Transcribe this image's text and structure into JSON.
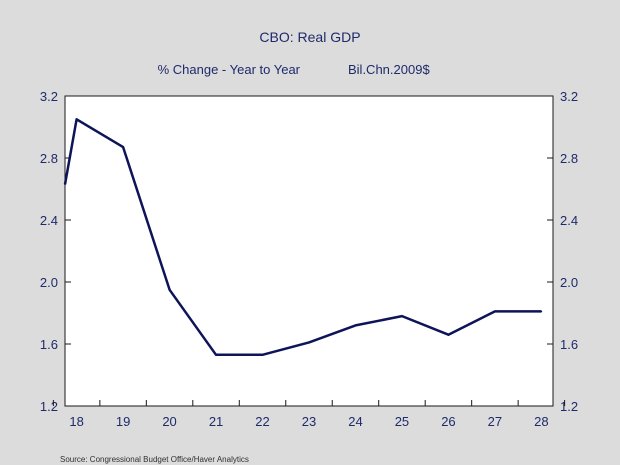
{
  "chart_data": {
    "type": "line",
    "title": "CBO: Real GDP",
    "subtitle_left": "% Change - Year to Year",
    "subtitle_right": "Bil.Chn.2009$",
    "source": "Source:  Congressional Budget Office/Haver Analytics",
    "x_tick_labels": [
      "18",
      "19",
      "20",
      "21",
      "22",
      "23",
      "24",
      "25",
      "26",
      "27",
      "28"
    ],
    "y_ticks": [
      1.2,
      1.6,
      2.0,
      2.4,
      2.8,
      3.2
    ],
    "y_tick_labels": [
      "1.2",
      "1.6",
      "2.0",
      "2.4",
      "2.8",
      "3.2"
    ],
    "ylim": [
      1.2,
      3.2
    ],
    "xlim": [
      2017.75,
      2028.25
    ],
    "grid": false,
    "series": [
      {
        "x": [
          2017.75,
          2018.0,
          2019.0,
          2020.0,
          2021.0,
          2022.0,
          2023.0,
          2024.0,
          2025.0,
          2026.0,
          2027.0,
          2028.0
        ],
        "values": [
          2.63,
          3.05,
          2.87,
          1.95,
          1.53,
          1.53,
          1.61,
          1.72,
          1.78,
          1.66,
          1.81,
          1.81
        ],
        "color": "#0d1458"
      }
    ]
  }
}
